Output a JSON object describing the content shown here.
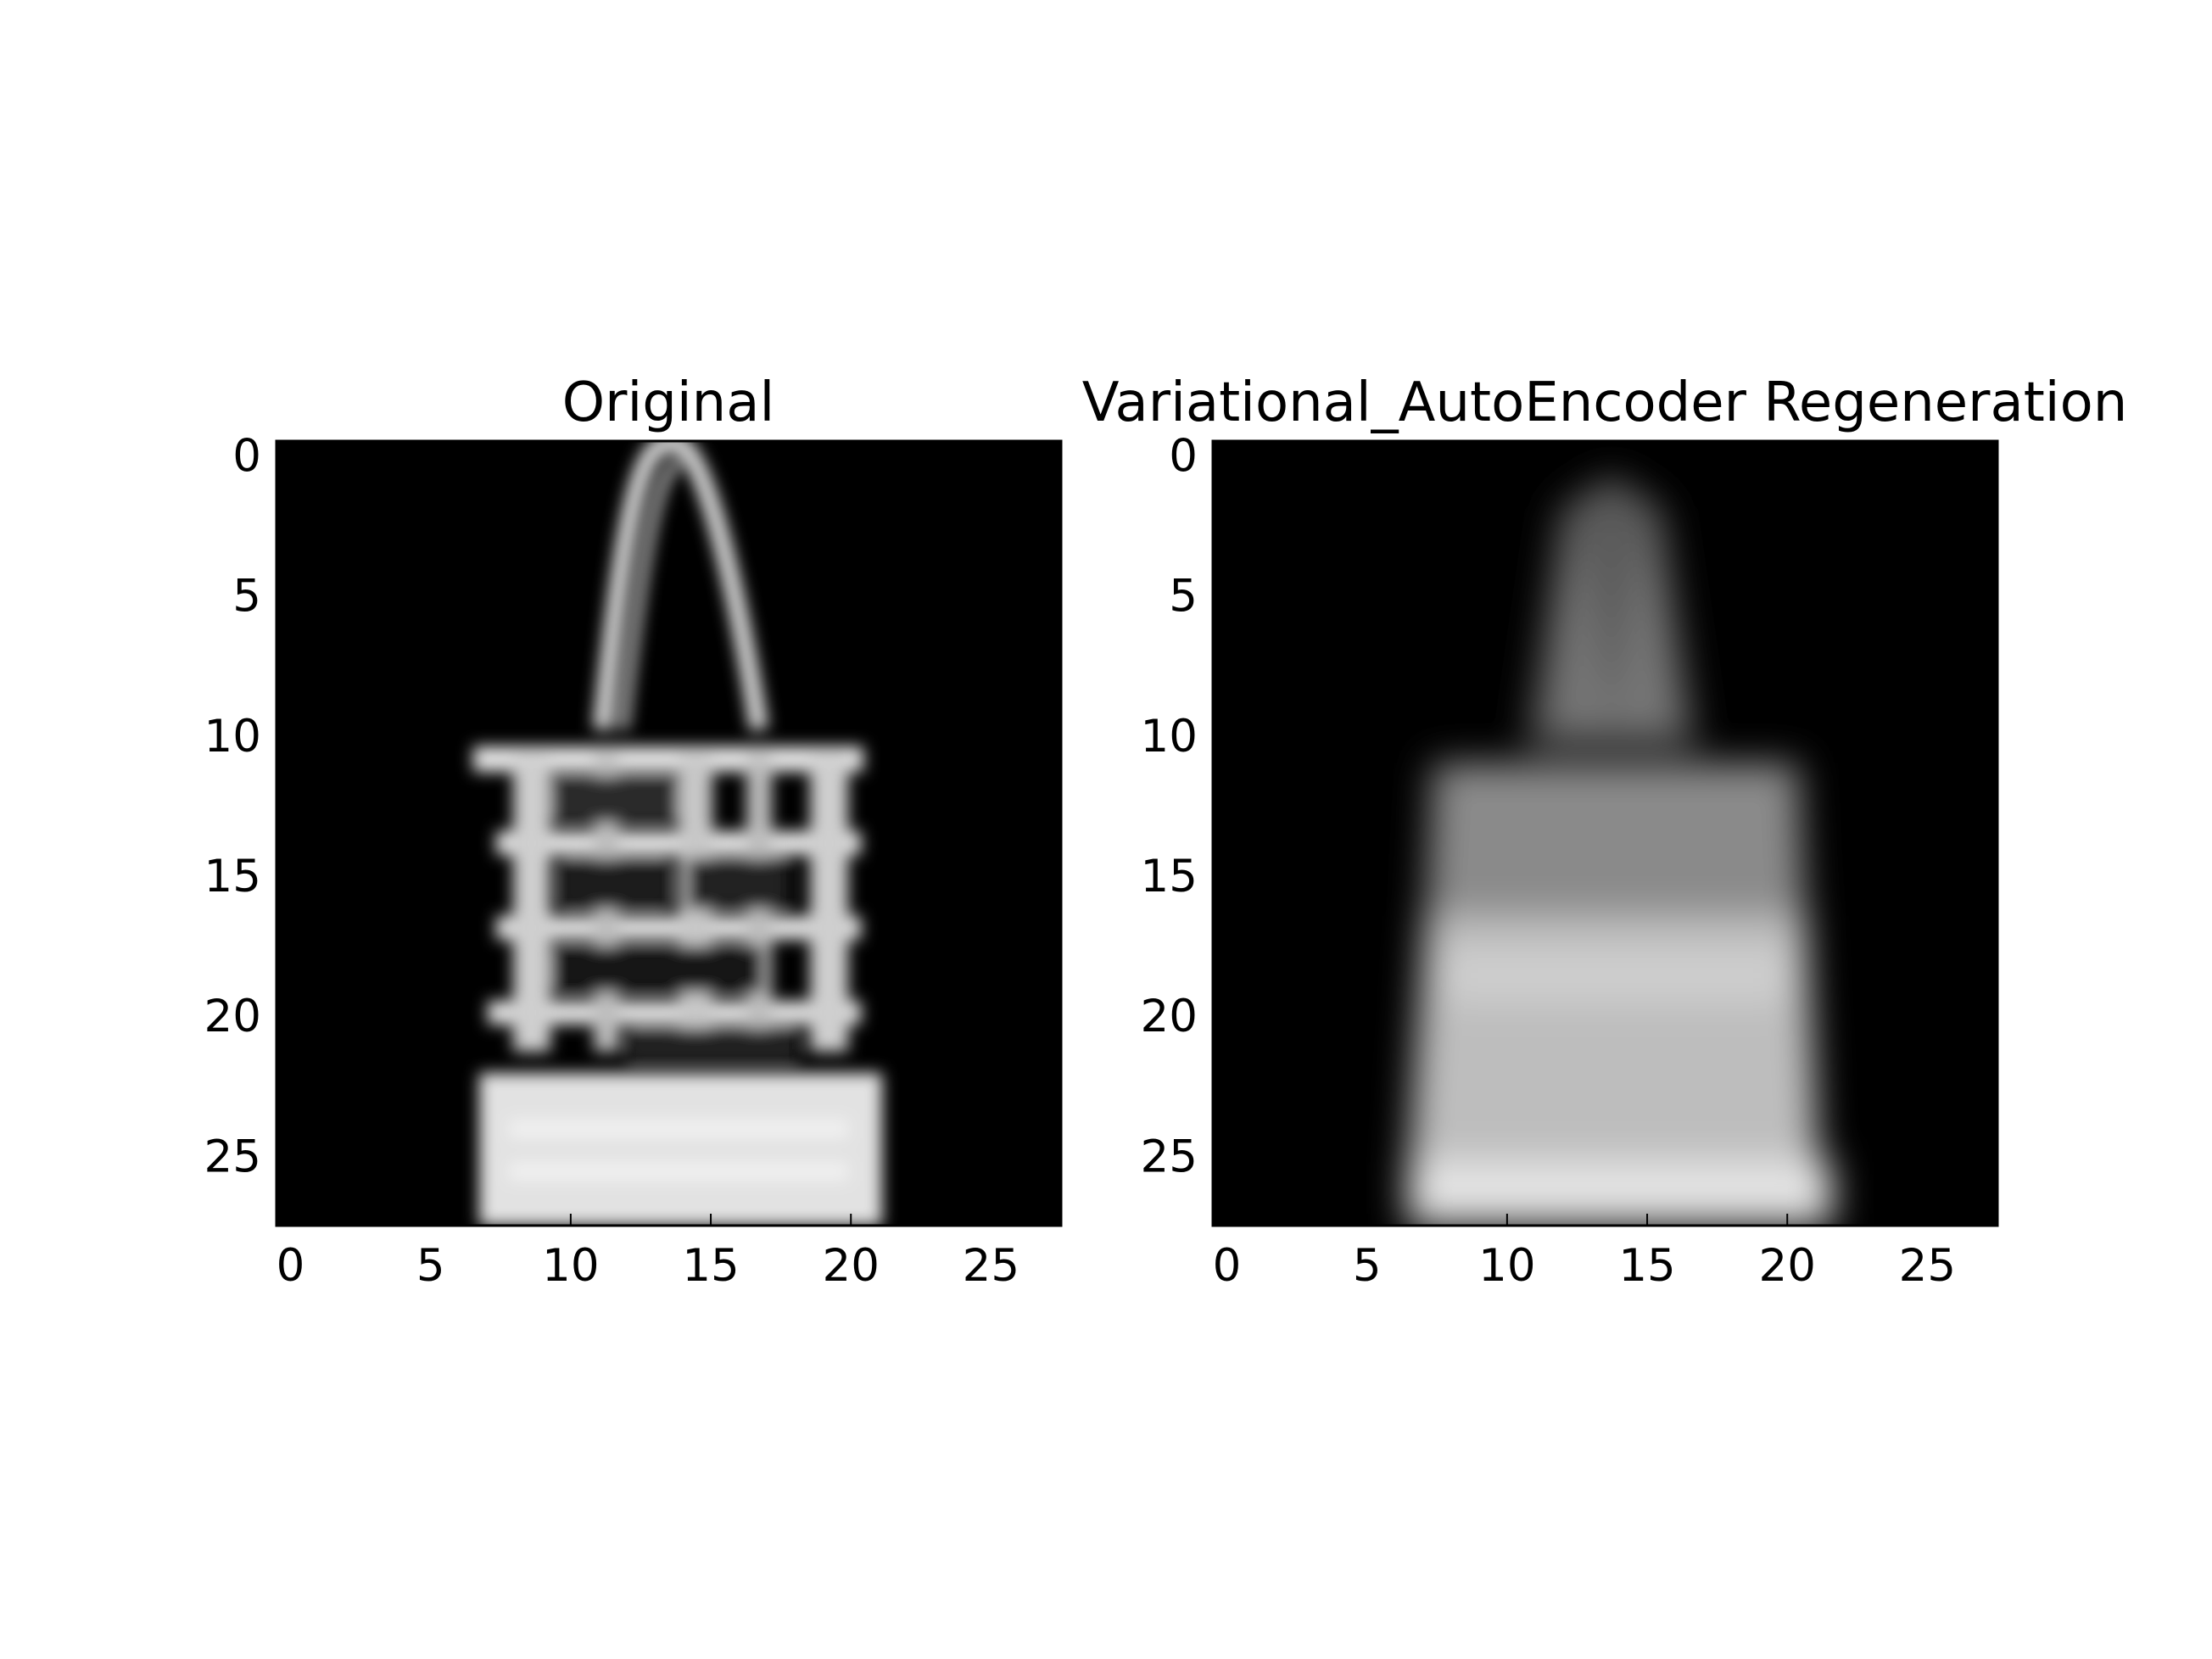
{
  "chart_data": [
    {
      "type": "heatmap",
      "title": "Original",
      "colormap": "gray",
      "grid": false,
      "xlim": [
        -0.5,
        27.5
      ],
      "ylim": [
        27.5,
        -0.5
      ],
      "xticks": [
        "0",
        "5",
        "10",
        "15",
        "20",
        "25"
      ],
      "yticks": [
        "0",
        "5",
        "10",
        "15",
        "20",
        "25"
      ],
      "description_values": {
        "rows": 28,
        "cols": 28
      }
    },
    {
      "type": "heatmap",
      "title": "Variational_AutoEncoder Regeneration",
      "colormap": "gray",
      "grid": false,
      "xlim": [
        -0.5,
        27.5
      ],
      "ylim": [
        27.5,
        -0.5
      ],
      "xticks": [
        "0",
        "5",
        "10",
        "15",
        "20",
        "25"
      ],
      "yticks": [
        "0",
        "5",
        "10",
        "15",
        "20",
        "25"
      ],
      "description_values": {
        "rows": 28,
        "cols": 28
      }
    }
  ]
}
